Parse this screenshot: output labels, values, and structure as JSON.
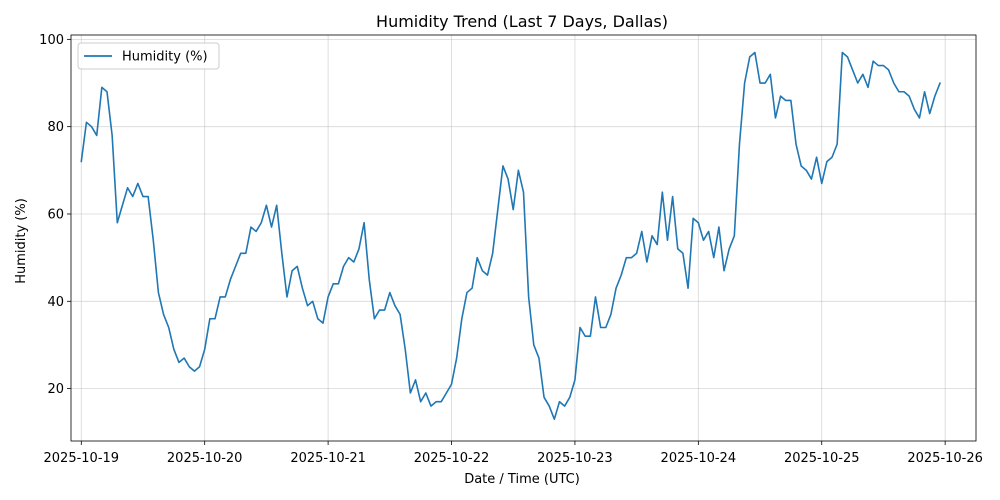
{
  "chart_data": {
    "type": "line",
    "title": "Humidity Trend (Last 7 Days, Dallas)",
    "xlabel": "Date / Time (UTC)",
    "ylabel": "Humidity (%)",
    "xlim": [
      "2025-10-18T22:00",
      "2025-10-26T06:00"
    ],
    "ylim": [
      8,
      101
    ],
    "x_ticks": [
      "2025-10-19",
      "2025-10-20",
      "2025-10-21",
      "2025-10-22",
      "2025-10-23",
      "2025-10-24",
      "2025-10-25",
      "2025-10-26"
    ],
    "y_ticks": [
      20,
      40,
      60,
      80,
      100
    ],
    "grid": true,
    "legend_position": "upper-left",
    "line_color": "#1f77b4",
    "series": [
      {
        "name": "Humidity (%)",
        "start": "2025-10-19T00:00",
        "step_hours": 1,
        "values": [
          72,
          81,
          80,
          78,
          89,
          88,
          78,
          58,
          62,
          66,
          64,
          67,
          64,
          64,
          54,
          42,
          37,
          34,
          29,
          26,
          27,
          25,
          24,
          25,
          29,
          36,
          36,
          41,
          41,
          45,
          48,
          51,
          51,
          57,
          56,
          58,
          62,
          57,
          62,
          51,
          41,
          47,
          48,
          43,
          39,
          40,
          36,
          35,
          41,
          44,
          44,
          48,
          50,
          49,
          52,
          58,
          45,
          36,
          38,
          38,
          42,
          39,
          37,
          29,
          19,
          22,
          17,
          19,
          16,
          17,
          17,
          19,
          21,
          27,
          36,
          42,
          43,
          50,
          47,
          46,
          51,
          61,
          71,
          68,
          61,
          70,
          65,
          41,
          30,
          27,
          18,
          16,
          13,
          17,
          16,
          18,
          22,
          34,
          32,
          32,
          41,
          34,
          34,
          37,
          43,
          46,
          50,
          50,
          51,
          56,
          49,
          55,
          53,
          65,
          54,
          64,
          52,
          51,
          43,
          59,
          58,
          54,
          56,
          50,
          57,
          47,
          52,
          55,
          76,
          90,
          96,
          97,
          90,
          90,
          92,
          82,
          87,
          86,
          86,
          76,
          71,
          70,
          68,
          73,
          67,
          72,
          73,
          76,
          97,
          96,
          93,
          90,
          92,
          89,
          95,
          94,
          94,
          93,
          90,
          88,
          88,
          87,
          84,
          82,
          88,
          83,
          87,
          90
        ]
      }
    ]
  }
}
